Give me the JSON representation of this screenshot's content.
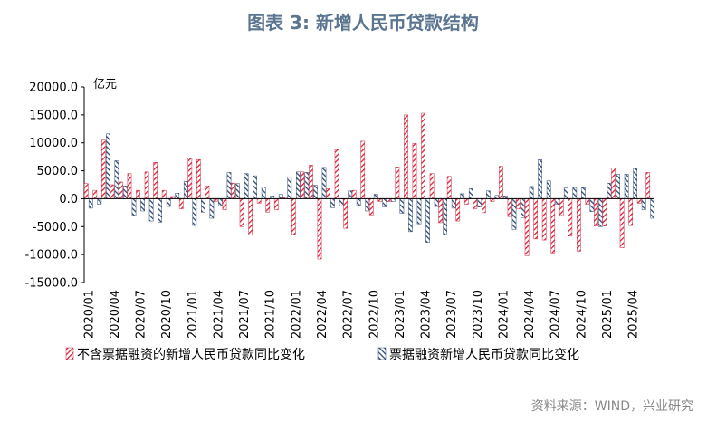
{
  "title": "图表 3:  新增人民币贷款结构",
  "source": "资料来源：WIND，兴业研究",
  "colors": {
    "series_a": "#d6233b",
    "series_b": "#2f4a73"
  },
  "chart_data": {
    "type": "bar",
    "unit": "亿元",
    "ylim": [
      -15000,
      20000
    ],
    "yticks": [
      "20000.0",
      "15000.0",
      "10000.0",
      "5000.0",
      "0.0",
      "-5000.0",
      "-10000.0",
      "-15000.0"
    ],
    "ytick_values": [
      20000,
      15000,
      10000,
      5000,
      0,
      -5000,
      -10000,
      -15000
    ],
    "xtick_labels": [
      "2020/01",
      "2020/04",
      "2020/07",
      "2020/10",
      "2021/01",
      "2021/04",
      "2021/07",
      "2021/10",
      "2022/01",
      "2022/04",
      "2022/07",
      "2022/10",
      "2023/01",
      "2023/04",
      "2023/07",
      "2023/10",
      "2024/01",
      "2024/04",
      "2024/07",
      "2024/10",
      "2025/01",
      "2025/04"
    ],
    "categories": [
      "2020/01",
      "2020/02",
      "2020/03",
      "2020/04",
      "2020/05",
      "2020/06",
      "2020/07",
      "2020/08",
      "2020/09",
      "2020/10",
      "2020/11",
      "2020/12",
      "2021/01",
      "2021/02",
      "2021/03",
      "2021/04",
      "2021/05",
      "2021/06",
      "2021/07",
      "2021/08",
      "2021/09",
      "2021/10",
      "2021/11",
      "2021/12",
      "2022/01",
      "2022/02",
      "2022/03",
      "2022/04",
      "2022/05",
      "2022/06",
      "2022/07",
      "2022/08",
      "2022/09",
      "2022/10",
      "2022/11",
      "2022/12",
      "2023/01",
      "2023/02",
      "2023/03",
      "2023/04",
      "2023/05",
      "2023/06",
      "2023/07",
      "2023/08",
      "2023/09",
      "2023/10",
      "2023/11",
      "2023/12",
      "2024/01",
      "2024/02",
      "2024/03",
      "2024/04",
      "2024/05",
      "2024/06",
      "2024/07",
      "2024/08",
      "2024/09",
      "2024/10",
      "2024/11",
      "2024/12",
      "2025/01",
      "2025/02",
      "2025/03",
      "2025/04",
      "2025/05",
      "2025/06"
    ],
    "series": [
      {
        "name": "不含票据融资的新增人民币贷款同比变化",
        "values": [
          2700,
          1500,
          10500,
          2500,
          3000,
          4500,
          1500,
          4800,
          6500,
          1500,
          400,
          -1800,
          7300,
          7000,
          2300,
          -500,
          -2000,
          2800,
          -5000,
          -6500,
          -800,
          -2400,
          -2000,
          300,
          -6400,
          4800,
          6000,
          -10800,
          1800,
          8800,
          -5300,
          1500,
          10300,
          -2900,
          -500,
          -500,
          5700,
          15000,
          9900,
          15300,
          4500,
          -4300,
          4000,
          -4000,
          -1000,
          -1800,
          -2500,
          -500,
          5800,
          -3200,
          -1800,
          -10200,
          -7200,
          -7400,
          -9700,
          -3000,
          -6700,
          -9400,
          -1000,
          -4900,
          -4900,
          5500,
          -8800,
          -4800,
          -800,
          4700
        ]
      },
      {
        "name": "票据融资新增人民币贷款同比变化",
        "values": [
          -1700,
          -1000,
          11600,
          6800,
          2300,
          -3000,
          -2200,
          -4000,
          -4200,
          -1400,
          1000,
          3100,
          -4800,
          -2400,
          -3500,
          -1300,
          4700,
          2700,
          4500,
          4100,
          2100,
          500,
          800,
          3900,
          4800,
          4700,
          2400,
          5600,
          -1600,
          -1300,
          1400,
          -1300,
          -2200,
          800,
          -1500,
          -500,
          -2600,
          -5900,
          -4500,
          -7800,
          -1400,
          -6500,
          -1700,
          900,
          1800,
          -1500,
          1400,
          600,
          500,
          -5500,
          -3400,
          2200,
          7000,
          3200,
          -1000,
          1900,
          2000,
          2000,
          -2300,
          -5000,
          2800,
          4400,
          4400,
          5400,
          -2000,
          -3500
        ]
      }
    ]
  }
}
